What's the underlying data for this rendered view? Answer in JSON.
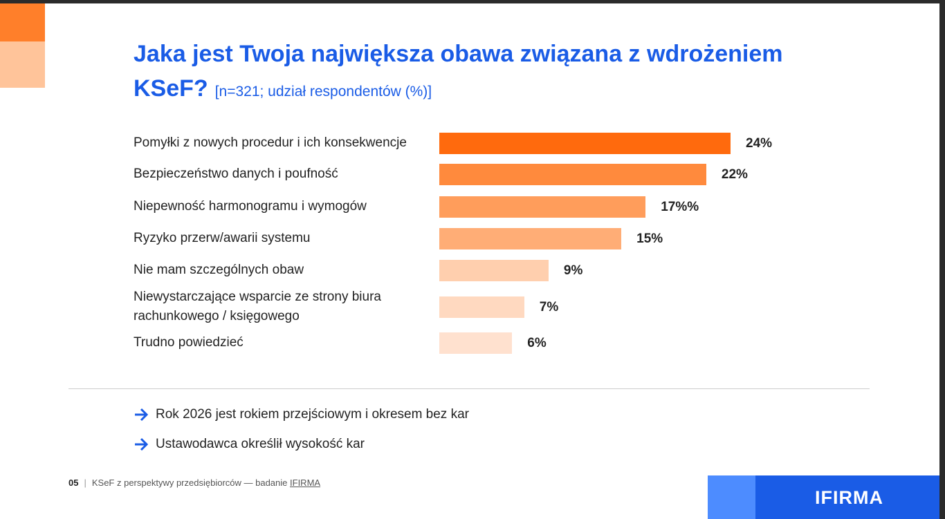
{
  "chart_data": {
    "type": "bar",
    "orientation": "horizontal",
    "title": "Jaka jest Twoja największa obawa związana z wdrożeniem KSeF?",
    "subtitle": "[n=321; udział respondentów (%)]",
    "categories": [
      "Pomyłki z nowych procedur i ich konsekwencje",
      "Bezpieczeństwo danych i poufność",
      "Niepewność harmonogramu i wymogów",
      "Ryzyko przerw/awarii systemu",
      "Nie mam szczególnych obaw",
      "Niewystarczające wsparcie ze strony biura rachunkowego / księgowego",
      "Trudno powiedzieć"
    ],
    "values": [
      24,
      22,
      17,
      15,
      9,
      7,
      6
    ],
    "value_labels": [
      "24%",
      "22%",
      "17%%",
      "15%",
      "9%",
      "7%",
      "6%"
    ],
    "colors": [
      "#ff6a0d",
      "#ff8a3d",
      "#ff9d5b",
      "#ffad76",
      "#ffcfae",
      "#ffd9c0",
      "#ffe1cf"
    ]
  },
  "slide": {
    "bullets": [
      "Rok 2026 jest rokiem przejściowym i okresem bez kar",
      "Ustawodawca określił wysokość kar"
    ],
    "footer": {
      "page": "05",
      "text": "KSeF z perspektywy przedsiębiorców — badanie",
      "link": "IFIRMA"
    },
    "logo": "IFIRMA"
  }
}
